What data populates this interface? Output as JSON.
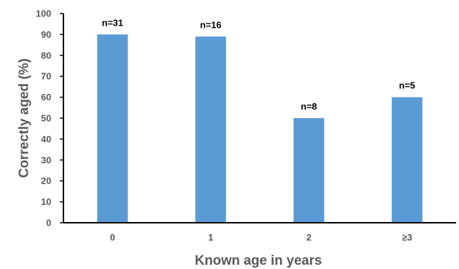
{
  "chart_data": {
    "type": "bar",
    "categories": [
      "0",
      "1",
      "2",
      "≥3"
    ],
    "values": [
      90,
      89,
      50,
      60
    ],
    "data_labels": [
      "n=31",
      "n=16",
      "n=8",
      "n=5"
    ],
    "title": "",
    "xlabel": "Known age in years",
    "ylabel": "Correctly aged (%)",
    "ylim": [
      0,
      100
    ],
    "yticks": [
      0,
      10,
      20,
      30,
      40,
      50,
      60,
      70,
      80,
      90,
      100
    ],
    "grid": false,
    "legend": "none",
    "bar_color": "#5b9bd5",
    "axis_color": "#000000"
  }
}
